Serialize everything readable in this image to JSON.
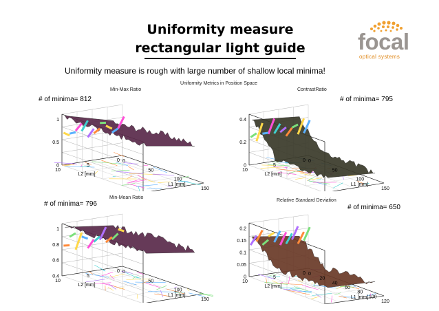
{
  "slide": {
    "title_line1": "Uniformity measure",
    "title_line2": "rectangular light guide",
    "subtitle": "Uniformity measure is rough  with large number of shallow local minima!",
    "figure_title": "Uniformity Metrics in Position Space"
  },
  "logo": {
    "word": "focal",
    "tagline": "optical systems",
    "icon": "dot-sphere-icon",
    "colors": {
      "dots": "#f0a030",
      "word": "#9a9591",
      "tagline": "#e08a1e"
    }
  },
  "plots": [
    {
      "title": "Min-Max Ratio",
      "minima_label": "# of minima= 812",
      "z_ticks": [
        "0",
        "0.5",
        "1"
      ],
      "l1_ticks": [
        "0",
        "50",
        "100",
        "150"
      ],
      "l2_ticks": [
        "0",
        "5",
        "10"
      ],
      "l1_label": "L1 [mm]",
      "l2_label": "L2 [mm]",
      "surface_color": "#5a2a4a"
    },
    {
      "title": "ContrastRatio",
      "minima_label": "# of minima= 795",
      "z_ticks": [
        "0",
        "0.2",
        "0.4"
      ],
      "l1_ticks": [
        "0",
        "50",
        "100",
        "150"
      ],
      "l2_ticks": [
        "0",
        "5",
        "10"
      ],
      "l1_label": "L1 [mm]",
      "l2_label": "L2 [mm]",
      "surface_color": "#3a3a2a"
    },
    {
      "title": "Min-Mean Ratio",
      "minima_label": "# of minima= 796",
      "z_ticks": [
        "0.4",
        "0.6",
        "0.8",
        "1"
      ],
      "l1_ticks": [
        "0",
        "50",
        "100",
        "150"
      ],
      "l2_ticks": [
        "0",
        "5",
        "10"
      ],
      "l1_label": "L1 [mm]",
      "l2_label": "L2 [mm]",
      "surface_color": "#5a2a4a"
    },
    {
      "title": "Relative Standard Deviation",
      "minima_label": "# of minima= 650",
      "z_ticks": [
        "0",
        "0.05",
        "0.1",
        "0.15",
        "0.2"
      ],
      "l1_ticks": [
        "0",
        "20",
        "40",
        "60",
        "80",
        "100",
        "120"
      ],
      "l2_ticks": [
        "0",
        "5",
        "10"
      ],
      "l1_label": "L1 [mm]",
      "l2_label": "L2 [mm]",
      "surface_color": "#6a3a28"
    }
  ]
}
